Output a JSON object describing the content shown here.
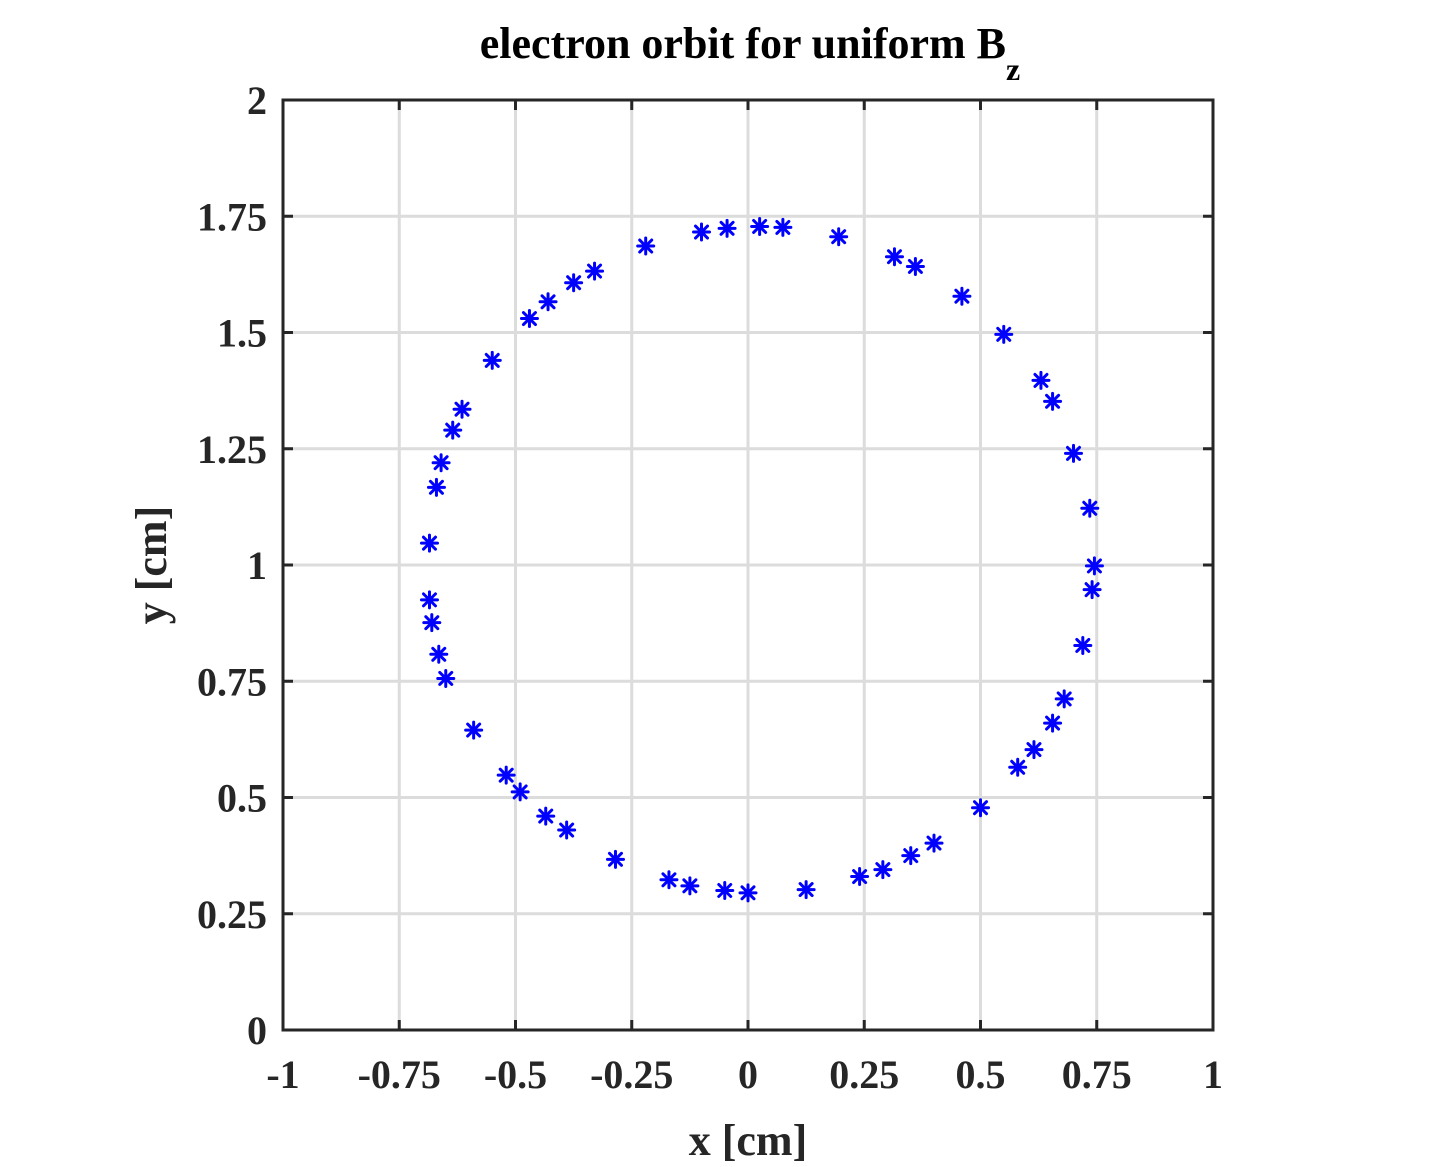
{
  "chart_data": {
    "type": "scatter",
    "title": "electron orbit for uniform B",
    "title_subscript": "z",
    "xlabel": "x [cm]",
    "ylabel": "y [cm]",
    "xlim": [
      -1,
      1
    ],
    "ylim": [
      0,
      2
    ],
    "xticks": [
      -1,
      -0.75,
      -0.5,
      -0.25,
      0,
      0.25,
      0.5,
      0.75,
      1
    ],
    "xtick_labels": [
      "-1",
      "-0.75",
      "-0.5",
      "-0.25",
      "0",
      "0.25",
      "0.5",
      "0.75",
      "1"
    ],
    "yticks": [
      0,
      0.25,
      0.5,
      0.75,
      1,
      1.25,
      1.5,
      1.75,
      2
    ],
    "ytick_labels": [
      "0",
      "0.25",
      "0.5",
      "0.75",
      "1",
      "1.25",
      "1.5",
      "1.75",
      "2"
    ],
    "grid": true,
    "marker": "asterisk",
    "marker_color": "#0000ff",
    "points": [
      [
        0.025,
        1.728
      ],
      [
        0.075,
        1.726
      ],
      [
        -0.045,
        1.724
      ],
      [
        -0.1,
        1.716
      ],
      [
        0.195,
        1.706
      ],
      [
        -0.22,
        1.686
      ],
      [
        0.315,
        1.663
      ],
      [
        0.36,
        1.642
      ],
      [
        -0.33,
        1.632
      ],
      [
        -0.375,
        1.607
      ],
      [
        0.46,
        1.578
      ],
      [
        -0.43,
        1.566
      ],
      [
        -0.47,
        1.53
      ],
      [
        0.55,
        1.496
      ],
      [
        -0.55,
        1.44
      ],
      [
        0.63,
        1.397
      ],
      [
        0.655,
        1.352
      ],
      [
        -0.615,
        1.335
      ],
      [
        -0.635,
        1.29
      ],
      [
        0.7,
        1.24
      ],
      [
        -0.66,
        1.22
      ],
      [
        -0.67,
        1.167
      ],
      [
        0.735,
        1.122
      ],
      [
        -0.685,
        1.047
      ],
      [
        0.745,
        0.998
      ],
      [
        0.74,
        0.947
      ],
      [
        -0.685,
        0.925
      ],
      [
        -0.68,
        0.876
      ],
      [
        0.72,
        0.827
      ],
      [
        -0.665,
        0.808
      ],
      [
        -0.65,
        0.756
      ],
      [
        0.68,
        0.712
      ],
      [
        0.655,
        0.66
      ],
      [
        -0.59,
        0.645
      ],
      [
        0.615,
        0.603
      ],
      [
        0.58,
        0.565
      ],
      [
        -0.52,
        0.548
      ],
      [
        -0.49,
        0.512
      ],
      [
        0.5,
        0.478
      ],
      [
        -0.435,
        0.46
      ],
      [
        -0.39,
        0.43
      ],
      [
        0.4,
        0.402
      ],
      [
        0.35,
        0.375
      ],
      [
        -0.285,
        0.367
      ],
      [
        0.29,
        0.345
      ],
      [
        0.24,
        0.33
      ],
      [
        -0.17,
        0.323
      ],
      [
        -0.125,
        0.31
      ],
      [
        0.125,
        0.302
      ],
      [
        -0.05,
        0.3
      ],
      [
        0.0,
        0.295
      ]
    ]
  }
}
